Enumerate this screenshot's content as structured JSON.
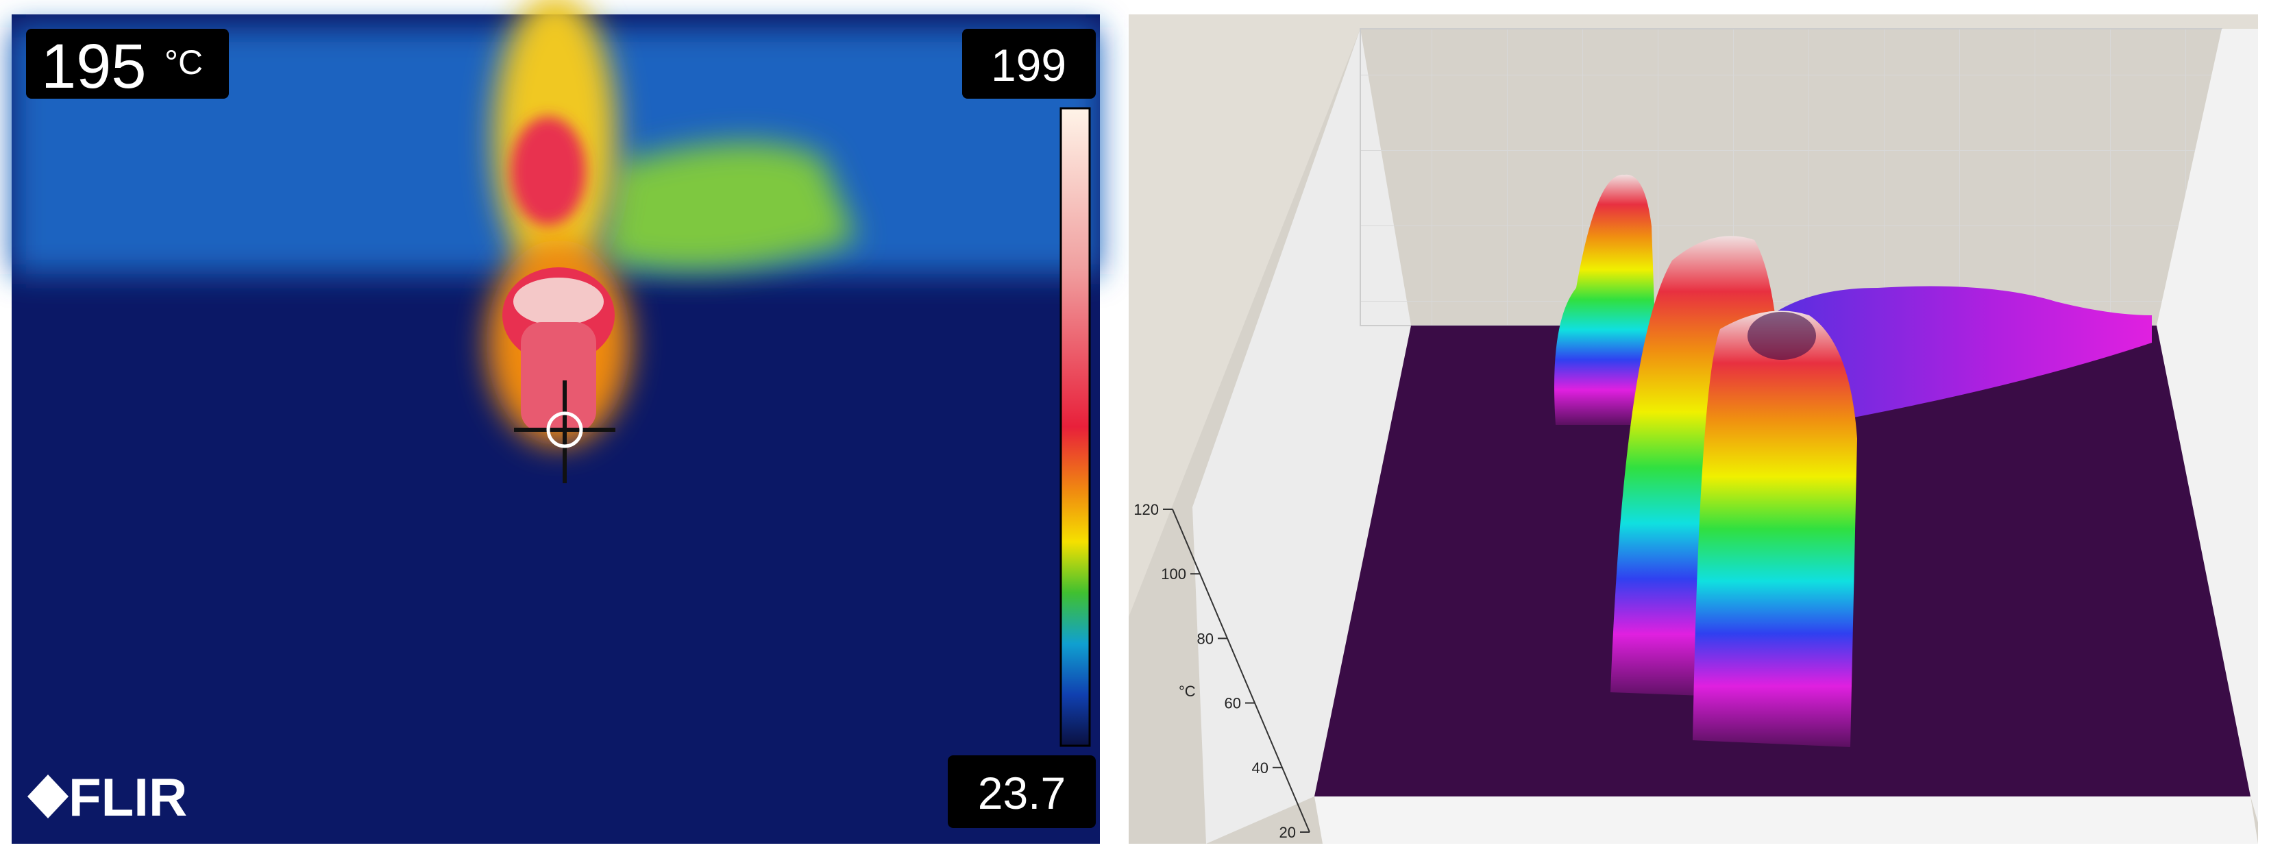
{
  "thermal": {
    "spot_value": "195",
    "spot_unit": "°C",
    "scale_max": "199",
    "scale_min": "23.7",
    "logo": "FLIR"
  },
  "plot3d": {
    "zlabel": "°C",
    "zlim": [
      20,
      120
    ],
    "zticks": [
      20,
      40,
      60,
      80,
      100,
      120
    ]
  }
}
